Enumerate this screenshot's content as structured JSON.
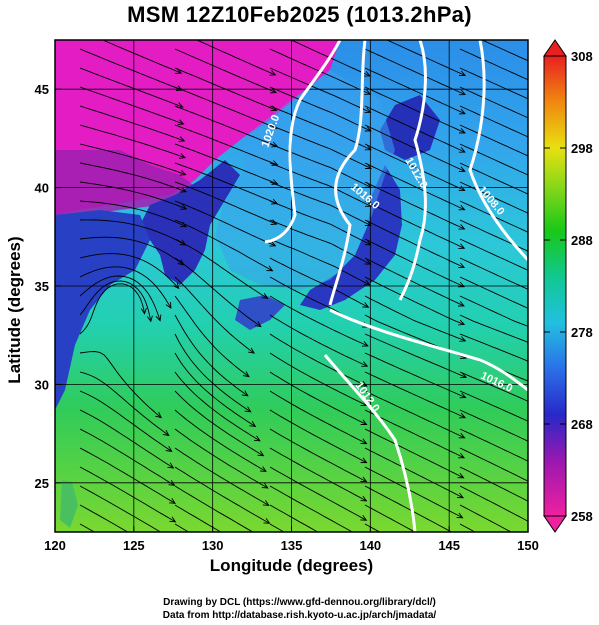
{
  "title": "MSM 12Z10Feb2025 (1013.2hPa)",
  "axes": {
    "xlabel": "Longitude (degrees)",
    "ylabel": "Latitude  (degrees)",
    "x_ticks": [
      "120",
      "125",
      "130",
      "135",
      "140",
      "145",
      "150"
    ],
    "y_ticks": [
      "25",
      "30",
      "35",
      "40",
      "45"
    ],
    "x_range": [
      120,
      150
    ],
    "y_range": [
      22.5,
      47.5
    ]
  },
  "colorbar": {
    "ticks": [
      "308",
      "298",
      "288",
      "278",
      "268",
      "258"
    ],
    "range": [
      258,
      308
    ],
    "colors": [
      "#e8209c",
      "#8a1aa8",
      "#1e30c8",
      "#2f7ce8",
      "#22c8d8",
      "#10c890",
      "#18c818",
      "#a8e010",
      "#f0e010",
      "#f08010",
      "#e02020"
    ]
  },
  "isobars": [
    "1020.0",
    "1016.0",
    "1012.0",
    "1008.0",
    "1016.0",
    "1012.0"
  ],
  "credits": {
    "line1": "Drawing by DCL (https://www.gfd-dennou.org/library/dcl/)",
    "line2": "Data from http://database.rish.kyoto-u.ac.jp/arch/jmadata/"
  },
  "colors": {
    "cold": "#e818c8",
    "sea_north": "#30a0e8",
    "sea_mid": "#22c8c8",
    "sea_south": "#40c850",
    "land": "#2838c0",
    "isobar": "#ffffff",
    "streamline": "#000000"
  }
}
